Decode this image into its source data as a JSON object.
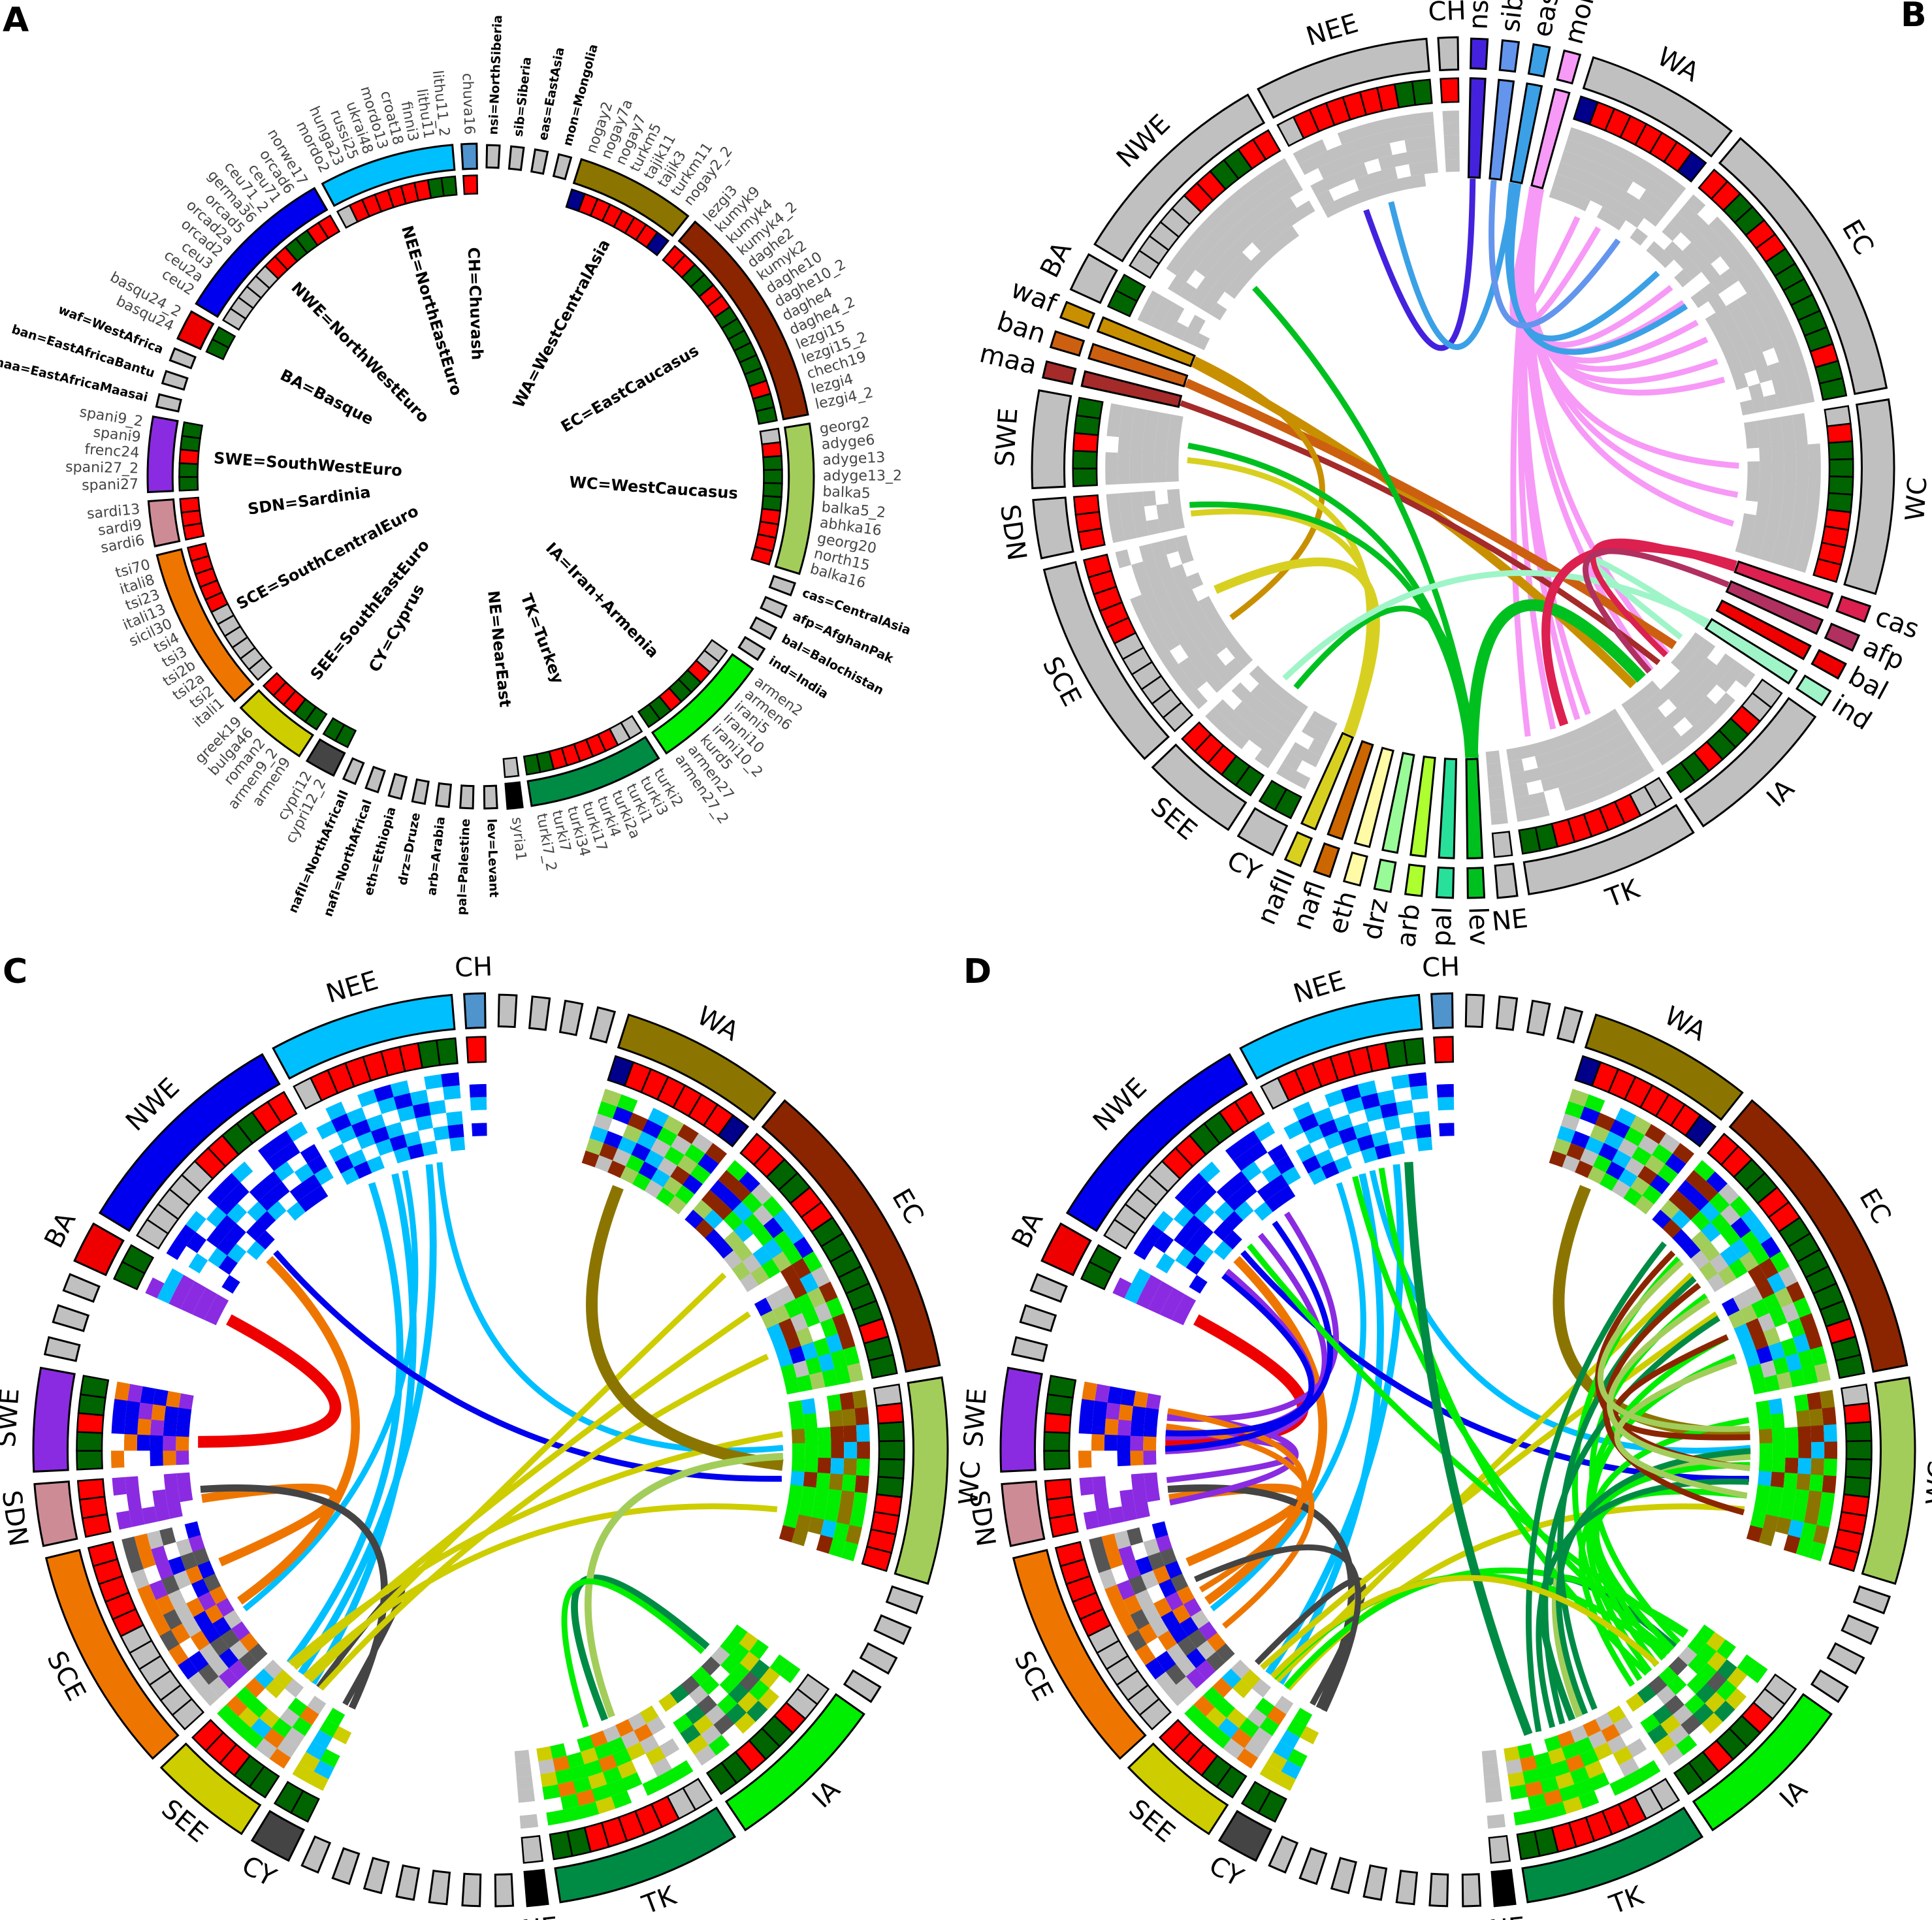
{
  "panel_labels": [
    "A",
    "B",
    "C",
    "D"
  ],
  "state_colors": {
    "R": "#ff0000",
    "G": "#006400",
    "S": "#c0c0c0",
    "N": "#00008b"
  },
  "neutral_color": "#c0c0c0",
  "groups": [
    {
      "id": "CH",
      "legend": "CH=Chuvash",
      "type": "region",
      "color": "#4f94cd",
      "states": "R",
      "pops": [
        "chuva16"
      ],
      "anc": [
        "#00bfff",
        "#0000ee",
        "#ffffff"
      ]
    },
    {
      "id": "nsi",
      "legend": "nsi=NorthSiberia",
      "type": "out",
      "color": "#4422dd",
      "pops": [
        ""
      ]
    },
    {
      "id": "sib",
      "legend": "sib=Siberia",
      "type": "out",
      "color": "#6495ed",
      "pops": [
        ""
      ]
    },
    {
      "id": "eas",
      "legend": "eas=EastAsia",
      "type": "out",
      "color": "#3ca0e6",
      "pops": [
        ""
      ]
    },
    {
      "id": "mon",
      "legend": "mon=Mongolia",
      "type": "out",
      "color": "#f799f7",
      "pops": [
        ""
      ]
    },
    {
      "id": "WA",
      "legend": "WA=WestCentralAsia",
      "type": "region",
      "color": "#8b7500",
      "states": "NRRRRRRN",
      "pops": [
        "nogay2",
        "nogay7a",
        "nogay7",
        "turkm5",
        "tajik11",
        "tajik3",
        "turkm11",
        "nogay2_2"
      ],
      "anc": [
        "#a2cd5a",
        "#8b2500",
        "#0000ee",
        "#00ee00",
        "#c0c0c0",
        "#00bfff"
      ]
    },
    {
      "id": "EC",
      "legend": "EC=EastCaucasus",
      "type": "region",
      "color": "#8b2500",
      "states": "RRGGRRGGGGGGRGG",
      "pops": [
        "lezgi3",
        "kumyk9",
        "kumyk4",
        "kumyk4_2",
        "daghe2",
        "kumyk2",
        "daghe10",
        "daghe10_2",
        "daghe4",
        "daghe4_2",
        "lezgi15",
        "lezgi15_2",
        "chech19",
        "lezgi4",
        "lezgi4_2"
      ],
      "anc": [
        "#00ee00",
        "#00ee00",
        "#8b2500",
        "#00bfff",
        "#0000ee",
        "#a2cd5a",
        "#c0c0c0"
      ]
    },
    {
      "id": "WC",
      "legend": "WC=WestCaucasus",
      "type": "region",
      "color": "#a2cd5a",
      "states": "SRGGGGRRRR",
      "pops": [
        "georg2",
        "adyge6",
        "adyge13",
        "adyge13_2",
        "balka5",
        "balka5_2",
        "abhka16",
        "georg20",
        "north15",
        "balka16"
      ],
      "anc": [
        "#8b2500",
        "#00ee00",
        "#00ee00",
        "#00bfff",
        "#8b7500"
      ]
    },
    {
      "id": "cas",
      "legend": "cas=CentralAsia",
      "type": "out",
      "color": "#dc2050",
      "pops": [
        ""
      ]
    },
    {
      "id": "afp",
      "legend": "afp=AfghanPak",
      "type": "out",
      "color": "#b03060",
      "pops": [
        ""
      ]
    },
    {
      "id": "bal",
      "legend": "bal=Balochistan",
      "type": "out",
      "color": "#ee0000",
      "pops": [
        ""
      ]
    },
    {
      "id": "ind",
      "legend": "ind=India",
      "type": "out",
      "color": "#9ff5c8",
      "pops": [
        ""
      ]
    },
    {
      "id": "IA",
      "legend": "IA=Iran+Armenia",
      "type": "region",
      "color": "#00ee00",
      "states": "SSRGGRGG",
      "pops": [
        "armen2",
        "armen6",
        "irani5",
        "irani10",
        "irani10_2",
        "kurd5",
        "armen27",
        "armen27_2"
      ],
      "anc": [
        "#00ee00",
        "#00ee00",
        "#c0c0c0",
        "#555555",
        "#008b45",
        "#cdcd00"
      ]
    },
    {
      "id": "TK",
      "legend": "TK=Turkey",
      "type": "region",
      "color": "#008b45",
      "states": "SSRRRRRGG",
      "pops": [
        "turki2",
        "turki3",
        "turki1",
        "turki2a",
        "turki4",
        "turki17",
        "turki34",
        "turki7",
        "turki7_2"
      ],
      "anc": [
        "#00ee00",
        "#00ee00",
        "#00ee00",
        "#ee7600",
        "#c0c0c0",
        "#cdcd00"
      ]
    },
    {
      "id": "NE",
      "legend": "NE=NearEast",
      "type": "region",
      "color": "#000000",
      "states": "S",
      "pops": [
        "syria1"
      ],
      "anc": [
        "#c0c0c0"
      ]
    },
    {
      "id": "lev",
      "legend": "lev=Levant",
      "type": "out",
      "color": "#00c020",
      "pops": [
        ""
      ]
    },
    {
      "id": "pal",
      "legend": "pal=Palestine",
      "type": "out",
      "color": "#28e09a",
      "pops": [
        ""
      ]
    },
    {
      "id": "arb",
      "legend": "arb=Arabia",
      "type": "out",
      "color": "#adff2f",
      "pops": [
        ""
      ]
    },
    {
      "id": "drz",
      "legend": "drz=Druze",
      "type": "out",
      "color": "#98fb98",
      "pops": [
        ""
      ]
    },
    {
      "id": "eth",
      "legend": "eth=Ethiopia",
      "type": "out",
      "color": "#fffaa5",
      "pops": [
        ""
      ]
    },
    {
      "id": "nafl",
      "legend": "nafI=NorthAfricaI",
      "type": "out",
      "color": "#cc6600",
      "pops": [
        ""
      ]
    },
    {
      "id": "nafII",
      "legend": "nafII=NorthAfricaII",
      "type": "out",
      "color": "#d8d020",
      "pops": [
        ""
      ]
    },
    {
      "id": "CY",
      "legend": "CY=Cyprus",
      "type": "region",
      "color": "#444444",
      "states": "GG",
      "pops": [
        "cypri12_2",
        "cypri12"
      ],
      "anc": [
        "#00bfff",
        "#00ee00",
        "#cdcd00"
      ]
    },
    {
      "id": "SEE",
      "legend": "SEE=SouthEastEuro",
      "type": "region",
      "color": "#cdcd00",
      "states": "GGRRR",
      "pops": [
        "armen9",
        "armen9_2",
        "roman2",
        "bulga46",
        "greek19"
      ],
      "anc": [
        "#00bfff",
        "#00ee00",
        "#ee7600",
        "#cdcd00",
        "#c0c0c0"
      ]
    },
    {
      "id": "SCE",
      "legend": "SCE=SouthCentralEuro",
      "type": "region",
      "color": "#ee7600",
      "states": "SSSSSSRRRRR",
      "pops": [
        "itali1",
        "tsi2",
        "tsi2a",
        "tsi2b",
        "tsi3",
        "tsi4",
        "sicil30",
        "itali13",
        "tsi23",
        "itali8",
        "tsi70"
      ],
      "anc": [
        "#ee7600",
        "#0000ee",
        "#555555",
        "#8a2be2",
        "#c0c0c0"
      ]
    },
    {
      "id": "SDN",
      "legend": "SDN=Sardinia",
      "type": "region",
      "color": "#cd8c95",
      "states": "RRR",
      "pops": [
        "sardi6",
        "sardi9",
        "sardi13"
      ],
      "anc": [
        "#8a2be2",
        "#8a2be2",
        "#ffffff"
      ]
    },
    {
      "id": "SWE",
      "legend": "SWE=SouthWestEuro",
      "type": "region",
      "color": "#8a2be2",
      "states": "GGRGG",
      "pops": [
        "spani27",
        "spani27_2",
        "frenc24",
        "spani9",
        "spani9_2"
      ],
      "anc": [
        "#0000ee",
        "#ee7600",
        "#8a2be2",
        "#0000ee"
      ]
    },
    {
      "id": "maa",
      "legend": "maa=EastAfricaMaasai",
      "type": "out",
      "color": "#a52a2a",
      "pops": [
        ""
      ]
    },
    {
      "id": "ban",
      "legend": "ban=EastAfricaBantu",
      "type": "out",
      "color": "#cc6010",
      "pops": [
        ""
      ]
    },
    {
      "id": "waf",
      "legend": "waf=WestAfrica",
      "type": "out",
      "color": "#c89000",
      "pops": [
        ""
      ]
    },
    {
      "id": "BA",
      "legend": "BA=Basque",
      "type": "region",
      "color": "#ee0000",
      "states": "GG",
      "pops": [
        "basqu24",
        "basqu24_2"
      ],
      "anc": [
        "#8a2be2",
        "#8a2be2",
        "#00bfff"
      ]
    },
    {
      "id": "NWE",
      "legend": "NWE=NorthWestEuro",
      "type": "region",
      "color": "#0000ee",
      "states": "SSSSSRRGGRR",
      "pops": [
        "ceu2",
        "ceu2a",
        "ceu3",
        "orcad2",
        "orcad2a",
        "orcad5",
        "germa36",
        "ceu71_2",
        "ceu71",
        "orcad6",
        "norwe17"
      ],
      "anc": [
        "#0000ee",
        "#0000ee",
        "#00bfff",
        "#ffffff"
      ]
    },
    {
      "id": "NEE",
      "legend": "NEE=NorthEastEuro",
      "type": "region",
      "color": "#00bfff",
      "states": "SRRRRRRGG",
      "pops": [
        "mordo2",
        "hunga23",
        "russi25",
        "ukrai48",
        "mordo13",
        "croat18",
        "finni3",
        "lithu11",
        "lithu11_2"
      ],
      "anc": [
        "#00bfff",
        "#0000ee",
        "#00bfff",
        "#ffffff"
      ]
    }
  ],
  "chords": {
    "B": [
      [
        "mon",
        "WA",
        1
      ],
      [
        "mon",
        "WA",
        1
      ],
      [
        "mon",
        "EC",
        1
      ],
      [
        "mon",
        "EC",
        1
      ],
      [
        "mon",
        "EC",
        1
      ],
      [
        "mon",
        "EC",
        1
      ],
      [
        "mon",
        "EC",
        1
      ],
      [
        "mon",
        "EC",
        1
      ],
      [
        "mon",
        "WC",
        1
      ],
      [
        "mon",
        "WC",
        1
      ],
      [
        "mon",
        "WC",
        1
      ],
      [
        "mon",
        "TK",
        1
      ],
      [
        "mon",
        "TK",
        1
      ],
      [
        "mon",
        "TK",
        1
      ],
      [
        "mon",
        "TK",
        1
      ],
      [
        "mon",
        "IA",
        1
      ],
      [
        "mon",
        "IA",
        1
      ],
      [
        "nsi",
        "NEE",
        1
      ],
      [
        "eas",
        "NEE",
        1
      ],
      [
        "eas",
        "EC",
        1
      ],
      [
        "eas",
        "EC",
        1
      ],
      [
        "sib",
        "WA",
        1
      ],
      [
        "waf",
        "IA",
        1.5
      ],
      [
        "ban",
        "IA",
        1.5
      ],
      [
        "maa",
        "IA",
        1
      ],
      [
        "waf",
        "SCE",
        1
      ],
      [
        "nafII",
        "SCE",
        1.5
      ],
      [
        "nafII",
        "SWE",
        1
      ],
      [
        "nafII",
        "SDN",
        1
      ],
      [
        "lev",
        "SWE",
        1
      ],
      [
        "lev",
        "SDN",
        1
      ],
      [
        "lev",
        "NWE",
        1
      ],
      [
        "lev",
        "IA",
        2
      ],
      [
        "lev",
        "SEE",
        1
      ],
      [
        "ind",
        "SEE",
        1
      ],
      [
        "ind",
        "IA",
        1
      ],
      [
        "cas",
        "TK",
        1.5
      ],
      [
        "cas",
        "IA",
        1
      ],
      [
        "afp",
        "IA",
        1
      ]
    ],
    "C": [
      [
        "NEE",
        "SEE",
        1.2
      ],
      [
        "NEE",
        "SEE",
        1.2
      ],
      [
        "NEE",
        "SEE",
        1.2
      ],
      [
        "NEE",
        "SCE",
        1
      ],
      [
        "NEE",
        "WC",
        1
      ],
      [
        "BA",
        "SWE",
        2
      ],
      [
        "SCE",
        "NWE",
        1.5
      ],
      [
        "SCE",
        "SDN",
        1.5
      ],
      [
        "NWE",
        "WC",
        1
      ],
      [
        "CY",
        "SDN",
        1.2
      ],
      [
        "CY",
        "SEE",
        1
      ],
      [
        "SEE",
        "EC",
        1
      ],
      [
        "SEE",
        "EC",
        1
      ],
      [
        "SEE",
        "EC",
        1
      ],
      [
        "SEE",
        "WC",
        1
      ],
      [
        "SEE",
        "WC",
        1
      ],
      [
        "WA",
        "WC",
        2
      ],
      [
        "TK",
        "IA",
        1.2
      ],
      [
        "WC",
        "TK",
        1.2
      ],
      [
        "IA",
        "TK",
        1
      ]
    ],
    "D": [
      [
        "NEE",
        "SEE",
        1.2
      ],
      [
        "NEE",
        "SEE",
        1.2
      ],
      [
        "NEE",
        "SCE",
        1
      ],
      [
        "NEE",
        "WC",
        1
      ],
      [
        "BA",
        "SWE",
        2
      ],
      [
        "SCE",
        "NWE",
        1.5
      ],
      [
        "SCE",
        "SDN",
        1.5
      ],
      [
        "NWE",
        "WC",
        1
      ],
      [
        "CY",
        "SDN",
        1.2
      ],
      [
        "CY",
        "SEE",
        1
      ],
      [
        "SEE",
        "EC",
        1
      ],
      [
        "SEE",
        "EC",
        1
      ],
      [
        "SEE",
        "WC",
        1
      ],
      [
        "WA",
        "WC",
        2
      ],
      [
        "TK",
        "IA",
        1.2
      ],
      [
        "WC",
        "TK",
        1.2
      ],
      [
        "SWE",
        "NWE",
        1
      ],
      [
        "SWE",
        "NWE",
        1
      ],
      [
        "SWE",
        "NWE",
        1
      ],
      [
        "SWE",
        "SDN",
        1
      ],
      [
        "SWE",
        "SDN",
        1
      ],
      [
        "SCE",
        "SWE",
        1
      ],
      [
        "SCE",
        "SWE",
        1
      ],
      [
        "NWE",
        "SWE",
        1
      ],
      [
        "NWE",
        "SWE",
        1
      ],
      [
        "IA",
        "NEE",
        1
      ],
      [
        "IA",
        "NEE",
        1
      ],
      [
        "IA",
        "NWE",
        1
      ],
      [
        "IA",
        "EC",
        1
      ],
      [
        "IA",
        "EC",
        1
      ],
      [
        "IA",
        "EC",
        1
      ],
      [
        "IA",
        "EC",
        1
      ],
      [
        "IA",
        "WC",
        1
      ],
      [
        "IA",
        "WC",
        1
      ],
      [
        "IA",
        "WC",
        1
      ],
      [
        "IA",
        "SEE",
        1
      ],
      [
        "IA",
        "SEE",
        1
      ],
      [
        "TK",
        "EC",
        1
      ],
      [
        "TK",
        "EC",
        1
      ],
      [
        "TK",
        "EC",
        1
      ],
      [
        "TK",
        "NEE",
        1.5
      ],
      [
        "TK",
        "WC",
        1
      ],
      [
        "TK",
        "WC",
        1
      ],
      [
        "EC",
        "WC",
        1
      ],
      [
        "EC",
        "WC",
        1
      ],
      [
        "EC",
        "WC",
        1
      ],
      [
        "WC",
        "EC",
        1
      ],
      [
        "WC",
        "EC",
        1
      ],
      [
        "WC",
        "EC",
        1
      ],
      [
        "SEE",
        "IA",
        1
      ],
      [
        "CY",
        "SCE",
        1
      ]
    ]
  }
}
